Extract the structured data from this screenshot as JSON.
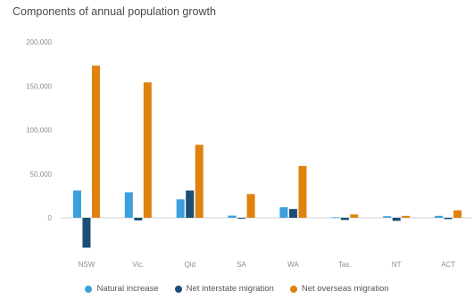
{
  "chart_data": {
    "type": "bar",
    "title": "Components of annual population growth",
    "xlabel": "",
    "ylabel": "",
    "categories": [
      "NSW",
      "Vic.",
      "Qld",
      "SA",
      "WA",
      "Tas.",
      "NT",
      "ACT"
    ],
    "series": [
      {
        "name": "Natural increase",
        "color": "#3ba0dc",
        "values": [
          31000,
          29000,
          21000,
          2500,
          12000,
          600,
          1800,
          2200
        ]
      },
      {
        "name": "Net interstate migration",
        "color": "#1a4e78",
        "values": [
          -34000,
          -3000,
          31000,
          -1000,
          10000,
          -2500,
          -3500,
          -1500
        ]
      },
      {
        "name": "Net overseas migration",
        "color": "#e0820f",
        "values": [
          173000,
          154000,
          83000,
          27000,
          59000,
          3800,
          2200,
          8500
        ]
      }
    ],
    "ylim": [
      -40000,
      200000
    ],
    "yticks": [
      0,
      50000,
      100000,
      150000,
      200000
    ],
    "ytick_labels": [
      "0",
      "50,000",
      "100,000",
      "150,000",
      "200,000"
    ],
    "grid": false,
    "legend_position": "bottom"
  }
}
